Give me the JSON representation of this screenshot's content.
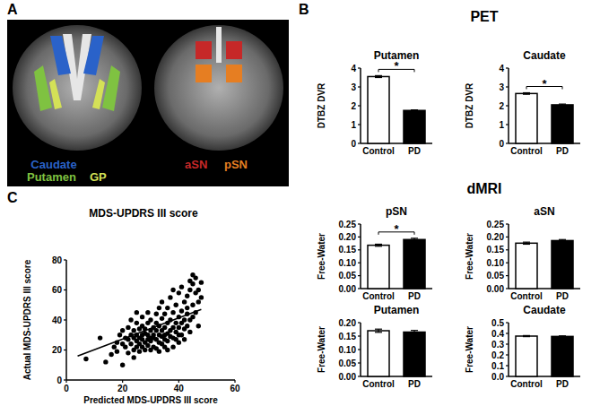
{
  "figure": {
    "panels": [
      "A",
      "B",
      "C"
    ],
    "sections": [
      "PET",
      "dMRI"
    ],
    "regions": [
      {
        "label": "Caudate",
        "color": "#2a62c9"
      },
      {
        "label": "Putamen",
        "color": "#7fc241"
      },
      {
        "label": "GP",
        "color": "#d4e157"
      },
      {
        "label": "aSN",
        "color": "#c62828"
      },
      {
        "label": "pSN",
        "color": "#e67e22"
      }
    ]
  },
  "chart_data": [
    {
      "type": "bar",
      "title": "Putamen",
      "y_label": "DTBZ DVR",
      "categories": [
        "Control",
        "PD"
      ],
      "values": [
        3.55,
        1.75
      ],
      "errors": [
        0.05,
        0.03
      ],
      "colors": [
        "#ffffff",
        "#000000"
      ],
      "ylim": [
        0,
        4
      ],
      "yticks": [
        0,
        1,
        2,
        3,
        4
      ],
      "annotation": "*"
    },
    {
      "type": "bar",
      "title": "Caudate",
      "y_label": "DTBZ DVR",
      "categories": [
        "Control",
        "PD"
      ],
      "values": [
        2.65,
        2.05
      ],
      "errors": [
        0.04,
        0.04
      ],
      "colors": [
        "#ffffff",
        "#000000"
      ],
      "ylim": [
        0,
        4
      ],
      "yticks": [
        0,
        1,
        2,
        3,
        4
      ],
      "annotation": "*"
    },
    {
      "type": "bar",
      "title": "pSN",
      "y_label": "Free-Water",
      "categories": [
        "Control",
        "PD"
      ],
      "values": [
        0.168,
        0.19
      ],
      "errors": [
        0.004,
        0.005
      ],
      "colors": [
        "#ffffff",
        "#000000"
      ],
      "ylim": [
        0,
        0.25
      ],
      "yticks": [
        {
          "value": 0,
          "label": "0.00"
        },
        0.05,
        {
          "value": 0.1,
          "label": "0.10"
        },
        0.15,
        {
          "value": 0.2,
          "label": "0.20"
        },
        0.25
      ],
      "annotation": "*"
    },
    {
      "type": "bar",
      "title": "aSN",
      "y_label": "Free-Water",
      "categories": [
        "Control",
        "PD"
      ],
      "values": [
        0.176,
        0.186
      ],
      "errors": [
        0.004,
        0.004
      ],
      "colors": [
        "#ffffff",
        "#000000"
      ],
      "ylim": [
        0,
        0.25
      ],
      "yticks": [
        {
          "value": 0,
          "label": "0.00"
        },
        0.05,
        {
          "value": 0.1,
          "label": "0.10"
        },
        0.15,
        {
          "value": 0.2,
          "label": "0.20"
        },
        0.25
      ]
    },
    {
      "type": "bar",
      "title": "Putamen",
      "y_label": "Free-Water",
      "categories": [
        "Control",
        "PD"
      ],
      "values": [
        0.17,
        0.165
      ],
      "errors": [
        0.006,
        0.006
      ],
      "colors": [
        "#ffffff",
        "#000000"
      ],
      "ylim": [
        0,
        0.2
      ],
      "yticks": [
        {
          "value": 0,
          "label": "0.00"
        },
        0.05,
        {
          "value": 0.1,
          "label": "0.10"
        },
        0.15,
        {
          "value": 0.2,
          "label": "0.20"
        }
      ]
    },
    {
      "type": "bar",
      "title": "Caudate",
      "y_label": "Free-Water",
      "categories": [
        "Control",
        "PD"
      ],
      "values": [
        0.375,
        0.372
      ],
      "errors": [
        0.005,
        0.005
      ],
      "colors": [
        "#ffffff",
        "#000000"
      ],
      "ylim": [
        0,
        0.5
      ],
      "yticks": [
        {
          "value": 0,
          "label": "0.0"
        },
        0.1,
        0.2,
        0.3,
        0.4,
        0.5
      ]
    },
    {
      "type": "scatter",
      "title": "MDS-UPDRS III score",
      "x_label": "Predicted MDS-UPDRS III score",
      "y_label": "Actual MDS-UPDRS III score",
      "xlim": [
        0,
        60
      ],
      "xticks": [
        0,
        20,
        40,
        60
      ],
      "ylim": [
        0,
        80
      ],
      "yticks": [
        0,
        20,
        40,
        60,
        80
      ],
      "series": [
        {
          "type": "scatter",
          "color": "#000000",
          "marker": "circle",
          "x": [
            7,
            12,
            14,
            16,
            17,
            18,
            18,
            19,
            20,
            20,
            20,
            21,
            21,
            22,
            22,
            22,
            23,
            23,
            23,
            24,
            24,
            24,
            24,
            25,
            25,
            25,
            25,
            25,
            26,
            26,
            26,
            26,
            27,
            27,
            27,
            27,
            27,
            28,
            28,
            28,
            28,
            29,
            29,
            29,
            29,
            29,
            30,
            30,
            30,
            30,
            30,
            31,
            31,
            31,
            31,
            32,
            32,
            32,
            32,
            32,
            33,
            33,
            33,
            33,
            33,
            34,
            34,
            34,
            34,
            34,
            35,
            35,
            35,
            35,
            35,
            36,
            36,
            36,
            36,
            36,
            37,
            37,
            37,
            37,
            38,
            38,
            38,
            38,
            38,
            39,
            39,
            39,
            39,
            40,
            40,
            40,
            40,
            40,
            41,
            41,
            41,
            41,
            42,
            42,
            42,
            42,
            43,
            43,
            43,
            43,
            44,
            44,
            44,
            44,
            45,
            45,
            45,
            45,
            46,
            46,
            46,
            47,
            47,
            48,
            48,
            47
          ],
          "values": [
            14,
            28,
            12,
            17,
            22,
            25,
            19,
            30,
            10,
            24,
            33,
            28,
            22,
            35,
            18,
            27,
            30,
            24,
            40,
            20,
            28,
            33,
            15,
            26,
            30,
            22,
            38,
            45,
            28,
            34,
            19,
            24,
            30,
            27,
            36,
            42,
            22,
            25,
            31,
            20,
            34,
            27,
            38,
            30,
            23,
            45,
            28,
            33,
            20,
            26,
            40,
            30,
            22,
            35,
            28,
            27,
            33,
            44,
            21,
            38,
            30,
            25,
            36,
            48,
            19,
            29,
            33,
            41,
            24,
            52,
            27,
            35,
            30,
            44,
            22,
            31,
            38,
            26,
            48,
            20,
            33,
            40,
            29,
            55,
            35,
            28,
            45,
            22,
            60,
            32,
            38,
            50,
            27,
            35,
            42,
            30,
            25,
            58,
            38,
            46,
            30,
            62,
            40,
            34,
            52,
            27,
            44,
            36,
            56,
            48,
            40,
            60,
            32,
            66,
            50,
            42,
            70,
            64,
            45,
            58,
            68,
            52,
            60,
            55,
            65,
            36
          ]
        },
        {
          "type": "line",
          "color": "#000000",
          "line_style": "solid",
          "x": [
            4,
            48
          ],
          "values": [
            16,
            47
          ]
        }
      ]
    }
  ]
}
